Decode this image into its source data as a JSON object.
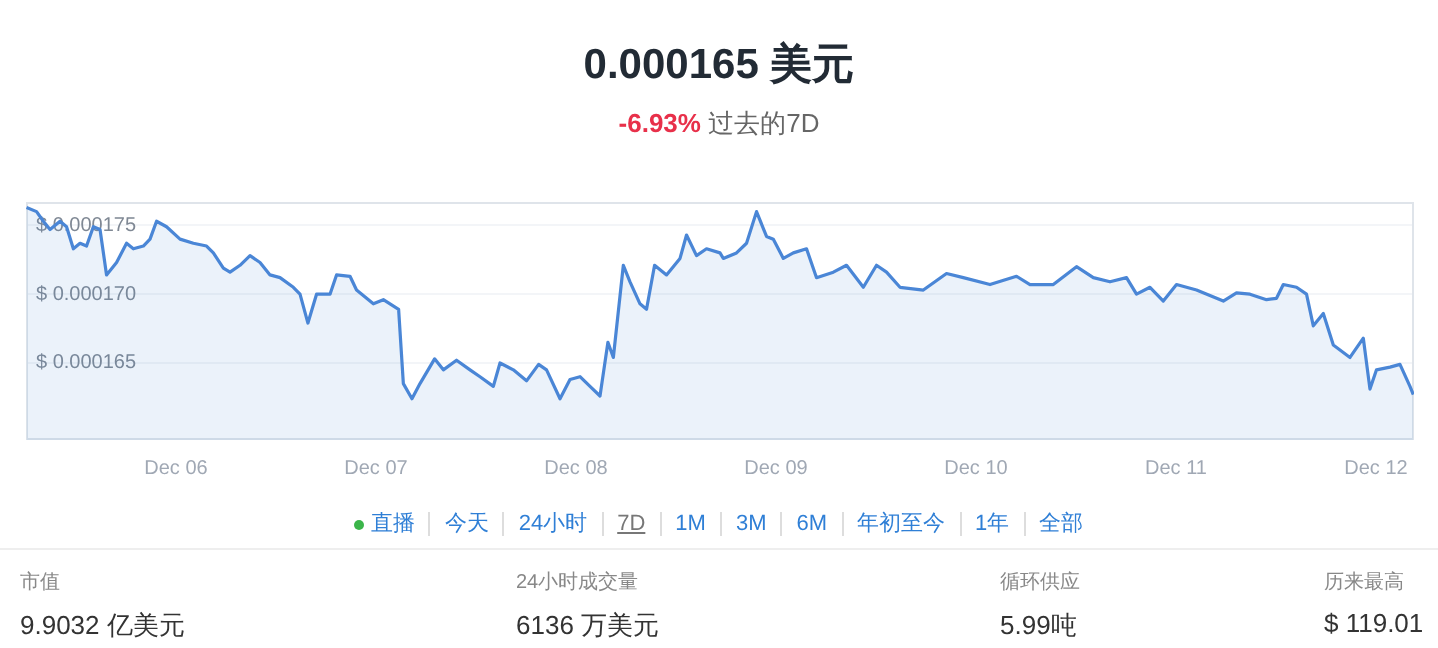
{
  "chart_data": {
    "type": "area",
    "title": "0.000165 美元",
    "subtitle": "-6.93% 过去的7D",
    "x": [
      "--12-05T06:04",
      "--12-05T07:16",
      "--12-05T08:05",
      "--12-05T08:53",
      "--12-05T10:05",
      "--12-05T10:52",
      "--12-05T11:41",
      "--12-05T12:29",
      "--12-05T13:16",
      "--12-05T14:05",
      "--12-05T14:53",
      "--12-05T15:40",
      "--12-05T16:52",
      "--12-05T18:04",
      "--12-05T18:53",
      "--12-05T20:05",
      "--12-05T20:53",
      "--12-05T21:40",
      "--12-05T22:52",
      "--12-06T00:29",
      "--12-06T02:05",
      "--12-06T03:40",
      "--12-06T04:29",
      "--12-06T05:41",
      "--12-06T06:29",
      "--12-06T07:41",
      "--12-06T08:53",
      "--12-06T10:05",
      "--12-06T11:17",
      "--12-06T12:29",
      "--12-06T14:05",
      "--12-06T14:53",
      "--12-06T15:50",
      "--12-06T16:52",
      "--12-06T18:29",
      "--12-06T19:16",
      "--12-06T20:53",
      "--12-06T21:40",
      "--12-06T23:41",
      "--12-07T00:53",
      "--12-07T02:43",
      "--12-07T03:17",
      "--12-07T04:19",
      "--12-07T05:17",
      "--12-07T07:02",
      "--12-07T08:05",
      "--12-07T09:40",
      "--12-07T11:17",
      "--12-07T12:29",
      "--12-07T14:05",
      "--12-07T14:53",
      "--12-07T16:29",
      "--12-07T18:04",
      "--12-07T19:31",
      "--12-07T20:28",
      "--12-07T22:05",
      "--12-07T23:17",
      "--12-08T00:29",
      "--12-08T01:41",
      "--12-08T02:53",
      "--12-08T03:50",
      "--12-08T04:29",
      "--12-08T05:41",
      "--12-08T06:29",
      "--12-08T07:41",
      "--12-08T08:28",
      "--12-08T09:26",
      "--12-08T10:52",
      "--12-08T12:29",
      "--12-08T13:16",
      "--12-08T14:28",
      "--12-08T15:40",
      "--12-08T17:17",
      "--12-08T17:41",
      "--12-08T19:16",
      "--12-08T20:28",
      "--12-08T21:40",
      "--12-08T22:52",
      "--12-08T23:41",
      "--12-09T00:53",
      "--12-09T02:05",
      "--12-09T03:40",
      "--12-09T04:52",
      "--12-09T06:53",
      "--12-09T08:28",
      "--12-09T10:29",
      "--12-09T12:04",
      "--12-09T13:16",
      "--12-09T14:53",
      "--12-09T17:41",
      "--12-09T20:28",
      "--12-09T22:29",
      "--12-10T01:41",
      "--12-10T04:52",
      "--12-10T06:29",
      "--12-10T09:17",
      "--12-10T12:04",
      "--12-10T14:05",
      "--12-10T16:05",
      "--12-10T18:04",
      "--12-10T19:16",
      "--12-10T20:53",
      "--12-10T22:29",
      "--12-11T00:04",
      "--12-11T02:28",
      "--12-11T05:41",
      "--12-11T07:16",
      "--12-11T08:53",
      "--12-11T10:52",
      "--12-11T12:04",
      "--12-11T12:53",
      "--12-11T14:28",
      "--12-11T15:40",
      "--12-11T16:29",
      "--12-11T17:41",
      "--12-11T18:53",
      "--12-11T20:53",
      "--12-11T22:29",
      "--12-11T23:17",
      "--12-12T00:04",
      "--12-12T01:41",
      "--12-12T02:53",
      "--12-12T04:05",
      "--12-12T04:29"
    ],
    "series": [
      {
        "color": "#4a86d6",
        "values": [
          0.0001763,
          0.000176,
          0.0001753,
          0.0001747,
          0.0001753,
          0.0001749,
          0.0001733,
          0.0001737,
          0.0001735,
          0.0001749,
          0.0001747,
          0.0001714,
          0.0001723,
          0.0001737,
          0.0001733,
          0.0001735,
          0.000174,
          0.0001753,
          0.0001749,
          0.000174,
          0.0001737,
          0.0001735,
          0.000173,
          0.0001719,
          0.0001716,
          0.0001721,
          0.0001728,
          0.0001723,
          0.0001714,
          0.0001712,
          0.0001705,
          0.00017,
          0.0001679,
          0.00017,
          0.00017,
          0.0001714,
          0.0001713,
          0.0001703,
          0.0001693,
          0.0001696,
          0.0001689,
          0.0001635,
          0.0001624,
          0.0001635,
          0.0001653,
          0.0001645,
          0.0001652,
          0.0001645,
          0.000164,
          0.0001633,
          0.000165,
          0.0001645,
          0.0001637,
          0.0001649,
          0.0001645,
          0.0001624,
          0.0001638,
          0.000164,
          0.0001633,
          0.0001626,
          0.0001665,
          0.0001654,
          0.0001721,
          0.0001709,
          0.0001693,
          0.0001689,
          0.0001721,
          0.0001714,
          0.0001726,
          0.0001743,
          0.0001728,
          0.0001733,
          0.000173,
          0.0001726,
          0.000173,
          0.0001737,
          0.000176,
          0.0001742,
          0.000174,
          0.0001726,
          0.000173,
          0.0001733,
          0.0001712,
          0.0001716,
          0.0001721,
          0.0001705,
          0.0001721,
          0.0001716,
          0.0001705,
          0.0001703,
          0.0001715,
          0.0001712,
          0.0001707,
          0.0001713,
          0.0001707,
          0.0001707,
          0.000172,
          0.0001712,
          0.0001709,
          0.0001712,
          0.00017,
          0.0001705,
          0.0001695,
          0.0001707,
          0.0001703,
          0.0001695,
          0.0001701,
          0.00017,
          0.0001696,
          0.0001697,
          0.0001707,
          0.0001705,
          0.00017,
          0.0001677,
          0.0001686,
          0.0001663,
          0.0001654,
          0.0001668,
          0.0001631,
          0.0001645,
          0.0001647,
          0.0001649,
          0.0001633,
          0.0001627
        ]
      }
    ],
    "xlim": [
      "--12-05T06:00",
      "--12-12T04:34"
    ],
    "ylim": [
      0.0001594,
      0.0001767
    ],
    "xticks": [
      {
        "value": "--12-06",
        "label": "Dec 06"
      },
      {
        "value": "--12-07",
        "label": "Dec 07"
      },
      {
        "value": "--12-08",
        "label": "Dec 08"
      },
      {
        "value": "--12-09",
        "label": "Dec 09"
      },
      {
        "value": "--12-10",
        "label": "Dec 10"
      },
      {
        "value": "--12-11",
        "label": "Dec 11"
      },
      {
        "value": "--12-12",
        "label": "Dec 12"
      }
    ],
    "yticks": [
      {
        "value": 0.000165,
        "label": "$ 0.000165"
      },
      {
        "value": 0.00017,
        "label": "$ 0.000170"
      },
      {
        "value": 0.000175,
        "label": "$ 0.000175"
      }
    ],
    "grid": "y",
    "annotations": [
      "直播",
      "今天",
      "24小时",
      "7D",
      "1M",
      "3M",
      "6M",
      "年初至今",
      "1年",
      "全部",
      "市值",
      "9.9032 亿美元",
      "24小时成交量",
      "6136 万美元",
      "循环供应",
      "5.99吨",
      "历来最高",
      "$ 119.01"
    ]
  }
}
